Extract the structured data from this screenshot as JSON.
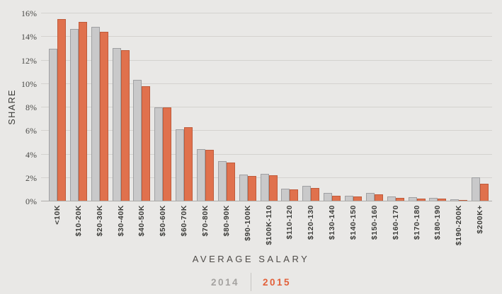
{
  "chart_data": {
    "type": "bar",
    "title": "",
    "xlabel": "AVERAGE SALARY",
    "ylabel": "SHARE",
    "ylim": [
      0,
      16
    ],
    "ytick_step": 2,
    "ytick_labels": [
      "0%",
      "2%",
      "4%",
      "6%",
      "8%",
      "10%",
      "12%",
      "14%",
      "16%"
    ],
    "grid": "horizontal",
    "legend_position": "bottom-center",
    "categories": [
      "<10K",
      "$10-20K",
      "$20-30K",
      "$30-40K",
      "$40-50K",
      "$50-60K",
      "$60-70K",
      "$70-80K",
      "$80-90K",
      "$90-100K",
      "$100K-110",
      "$110-120",
      "$120-130",
      "$130-140",
      "$140-150",
      "$150-160",
      "$160-170",
      "$170-180",
      "$180-190",
      "$190-200K",
      "$200K+"
    ],
    "series": [
      {
        "name": "2014",
        "fill": "#c9c9ca",
        "border": "#9fa0a2",
        "values": [
          13.0,
          14.7,
          14.85,
          13.05,
          10.35,
          8.0,
          6.15,
          4.45,
          3.4,
          2.3,
          2.35,
          1.1,
          1.35,
          0.7,
          0.5,
          0.75,
          0.4,
          0.35,
          0.3,
          0.2,
          2.05
        ]
      },
      {
        "name": "2015",
        "fill": "#e0714d",
        "border": "#bf5b3b",
        "values": [
          15.5,
          15.3,
          14.45,
          12.85,
          9.8,
          8.0,
          6.3,
          4.4,
          3.3,
          2.15,
          2.25,
          1.05,
          1.15,
          0.5,
          0.45,
          0.6,
          0.3,
          0.25,
          0.25,
          0.1,
          1.5
        ]
      }
    ]
  },
  "colors": {
    "background": "#e9e8e6",
    "gridline": "#d4d2cf",
    "baseline": "#aeaca9",
    "y_tick_text": "#4a4a47",
    "category_text": "#3b3b38",
    "axis_title_text": "#4e4b48",
    "legend_2014": "#a4a2a0",
    "legend_2015": "#e2603a",
    "legend_divider": "#c7c5c2"
  }
}
